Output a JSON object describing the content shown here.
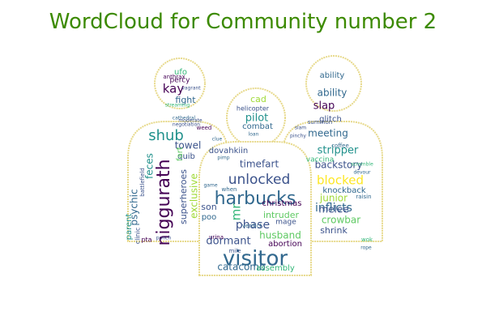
{
  "title": "WordCloud for Community number 2",
  "colors": {
    "title": "#3c8a00",
    "outline": "#e7d98a",
    "palette": [
      "#440154",
      "#3b528b",
      "#31688e",
      "#21918c",
      "#35b779",
      "#5ec962",
      "#a0da39",
      "#fde725"
    ]
  },
  "words": [
    {
      "text": "visitor",
      "c": 2
    },
    {
      "text": "harbucks",
      "c": 2
    },
    {
      "text": "niggurath",
      "c": 0
    },
    {
      "text": "unlocked",
      "c": 1
    },
    {
      "text": "shub",
      "c": 3
    },
    {
      "text": "mr",
      "c": 4
    },
    {
      "text": "phase",
      "c": 1
    },
    {
      "text": "kay",
      "c": 0
    },
    {
      "text": "pilot",
      "c": 3
    },
    {
      "text": "stripper",
      "c": 3
    },
    {
      "text": "blocked",
      "c": 7
    },
    {
      "text": "inflicts",
      "c": 2
    },
    {
      "text": "dormant",
      "c": 1
    },
    {
      "text": "timefart",
      "c": 1
    },
    {
      "text": "husband",
      "c": 5
    },
    {
      "text": "exclusive",
      "c": 6
    },
    {
      "text": "feces",
      "c": 3
    },
    {
      "text": "psychic",
      "c": 2
    },
    {
      "text": "meeting",
      "c": 2
    },
    {
      "text": "slap",
      "c": 0
    },
    {
      "text": "ability",
      "c": 2
    },
    {
      "text": "towel",
      "c": 1
    },
    {
      "text": "crowbar",
      "c": 5
    },
    {
      "text": "catacomb",
      "c": 2
    },
    {
      "text": "melee",
      "c": 1
    },
    {
      "text": "junior",
      "c": 6
    },
    {
      "text": "backstory",
      "c": 1
    },
    {
      "text": "fight",
      "c": 2
    },
    {
      "text": "superheroes",
      "c": 1
    },
    {
      "text": "son",
      "c": 1
    },
    {
      "text": "intruder",
      "c": 5
    },
    {
      "text": "shrink",
      "c": 1
    },
    {
      "text": "christmas",
      "c": 0
    },
    {
      "text": "parent",
      "c": 3
    },
    {
      "text": "cad",
      "c": 6
    },
    {
      "text": "dovahkiin",
      "c": 1
    },
    {
      "text": "combat",
      "c": 2
    },
    {
      "text": "poo",
      "c": 2
    },
    {
      "text": "assembly",
      "c": 4
    },
    {
      "text": "abortion",
      "c": 0
    },
    {
      "text": "knockback",
      "c": 2
    },
    {
      "text": "quib",
      "c": 1
    },
    {
      "text": "ability",
      "c": 2
    },
    {
      "text": "glitch",
      "c": 1
    },
    {
      "text": "percy",
      "c": 0
    },
    {
      "text": "ufo",
      "c": 4
    },
    {
      "text": "fart",
      "c": 5
    },
    {
      "text": "mage",
      "c": 1
    },
    {
      "text": "vaccina",
      "c": 4
    },
    {
      "text": "helicopter",
      "c": 1
    },
    {
      "text": "clinic",
      "c": 1
    },
    {
      "text": "anthrax",
      "c": 0
    },
    {
      "text": "summon",
      "c": 1
    },
    {
      "text": "weed",
      "c": 0
    },
    {
      "text": "pta",
      "c": 0
    },
    {
      "text": "urina",
      "c": 0
    },
    {
      "text": "mile",
      "c": 1
    },
    {
      "text": "verdict",
      "c": 2
    },
    {
      "text": "raisin",
      "c": 2
    },
    {
      "text": "coffee",
      "c": 2
    },
    {
      "text": "cathedral",
      "c": 2
    },
    {
      "text": "streaming",
      "c": 4
    },
    {
      "text": "when",
      "c": 2
    },
    {
      "text": "devour",
      "c": 2
    },
    {
      "text": "battlefield",
      "c": 1
    },
    {
      "text": "wok",
      "c": 4
    },
    {
      "text": "loan",
      "c": 2
    },
    {
      "text": "vagrant",
      "c": 1
    },
    {
      "text": "negotiation",
      "c": 1
    },
    {
      "text": "moderate",
      "c": 1
    },
    {
      "text": "slam",
      "c": 1
    },
    {
      "text": "pinchy",
      "c": 1
    },
    {
      "text": "scramble",
      "c": 4
    },
    {
      "text": "game",
      "c": 2
    },
    {
      "text": "clue",
      "c": 2
    },
    {
      "text": "pimp",
      "c": 2
    },
    {
      "text": "punch",
      "c": 1
    },
    {
      "text": "rope",
      "c": 2
    }
  ]
}
